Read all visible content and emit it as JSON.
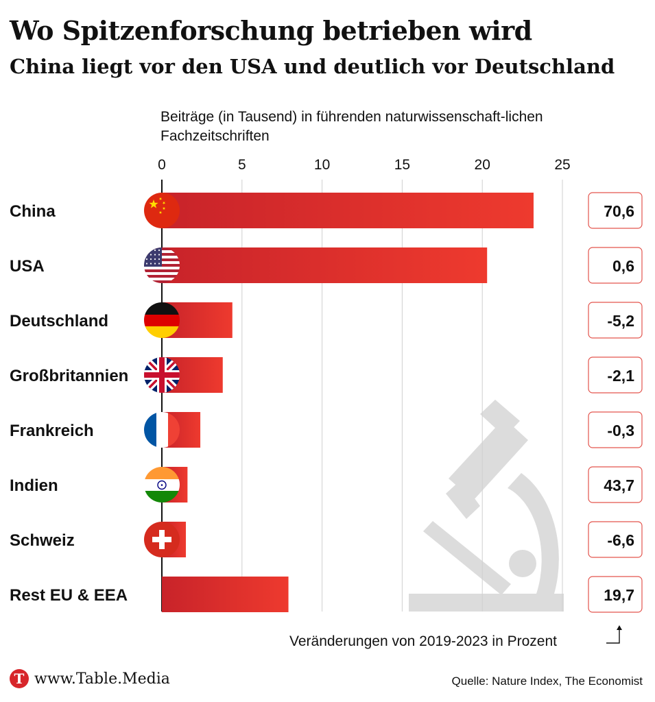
{
  "title": "Wo Spitzenforschung betrieben wird",
  "subtitle": "China liegt vor den USA und deutlich vor Deutschland",
  "footer": {
    "site": "www.Table.Media",
    "logo_letter": "T",
    "source": "Quelle: Nature Index, The Economist"
  },
  "colors": {
    "bar_start": "#c8232a",
    "bar_end": "#ee3a2e",
    "box_border": "#e3534c",
    "watermark": "#dcdcdc"
  },
  "chart_data": {
    "type": "bar",
    "orientation": "horizontal",
    "title": "Wo Spitzenforschung betrieben wird",
    "subtitle": "China liegt vor den USA und deutlich vor Deutschland",
    "xlabel": "Beiträge (in Tausend) in führenden naturwissenschaft-lichen Fachzeitschriften",
    "xlim": [
      0,
      25
    ],
    "xticks": [
      0,
      5,
      10,
      15,
      20,
      25
    ],
    "grid": true,
    "categories": [
      "China",
      "USA",
      "Deutschland",
      "Großbritannien",
      "Frankreich",
      "Indien",
      "Schweiz",
      "Rest EU & EEA"
    ],
    "values": [
      23.2,
      20.3,
      4.4,
      3.8,
      2.4,
      1.6,
      1.5,
      7.9
    ],
    "changes": [
      "70,6",
      "0,6",
      "-5,2",
      "-2,1",
      "-0,3",
      "43,7",
      "-6,6",
      "19,7"
    ],
    "change_label": "Veränderungen von 2019-2023 in Prozent",
    "flags": [
      "china-flag",
      "usa-flag",
      "germany-flag",
      "uk-flag",
      "france-flag",
      "india-flag",
      "switzerland-flag",
      ""
    ]
  }
}
